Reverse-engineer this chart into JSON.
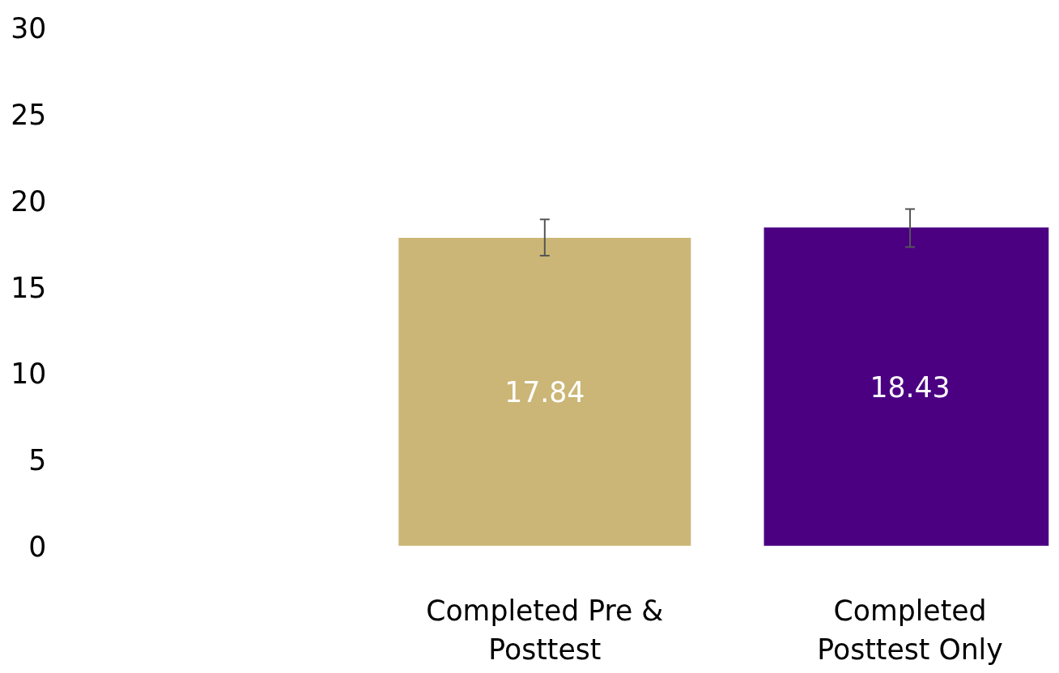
{
  "chart_data": {
    "type": "bar",
    "categories": [
      "Completed Pre & Posttest",
      "Completed Posttest Only"
    ],
    "values": [
      17.84,
      18.43
    ],
    "colors": [
      "#cbb677",
      "#4b0082"
    ],
    "errors": [
      [
        16.8,
        18.9
      ],
      [
        17.3,
        19.5
      ]
    ],
    "data_labels": true,
    "ylim": [
      0,
      30
    ],
    "yticks": [
      0,
      5,
      10,
      15,
      20,
      25,
      30
    ],
    "grid": false
  }
}
